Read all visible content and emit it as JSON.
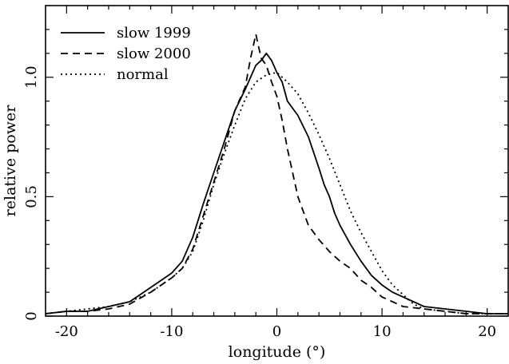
{
  "chart_data": {
    "type": "line",
    "xlabel": "longitude (°)",
    "ylabel": "relative power",
    "xlim": [
      -22,
      22
    ],
    "ylim": [
      0,
      1.3
    ],
    "xticks": [
      -20,
      -10,
      0,
      10,
      20
    ],
    "yticks": [
      0,
      0.5,
      1.0
    ],
    "ytick_labels": [
      "0",
      "0.5",
      "1.0"
    ],
    "legend_placement": "top-left",
    "grid": false,
    "series": [
      {
        "name": "slow 1999",
        "style": "solid",
        "x": [
          -22,
          -20,
          -18,
          -16,
          -14,
          -12,
          -10,
          -9,
          -8,
          -7,
          -6,
          -5,
          -4,
          -3,
          -2,
          -1.5,
          -1,
          -0.5,
          0,
          0.5,
          1,
          2,
          3,
          4,
          4.5,
          5,
          5.5,
          6,
          7,
          8,
          9,
          10,
          11,
          12,
          13,
          14,
          16,
          18,
          20,
          22
        ],
        "y": [
          0.01,
          0.02,
          0.02,
          0.04,
          0.06,
          0.12,
          0.18,
          0.23,
          0.33,
          0.47,
          0.6,
          0.73,
          0.86,
          0.95,
          1.05,
          1.07,
          1.1,
          1.07,
          1.02,
          0.98,
          0.9,
          0.84,
          0.75,
          0.62,
          0.55,
          0.5,
          0.43,
          0.38,
          0.3,
          0.23,
          0.17,
          0.13,
          0.1,
          0.08,
          0.06,
          0.04,
          0.03,
          0.02,
          0.01,
          0.01
        ]
      },
      {
        "name": "slow 2000",
        "style": "dashed",
        "x": [
          -22,
          -20,
          -18,
          -16,
          -14,
          -12,
          -10,
          -9,
          -8,
          -7,
          -6,
          -5,
          -4,
          -3,
          -2.5,
          -2,
          -1.5,
          -1,
          -0.5,
          0,
          0.5,
          1,
          2,
          3,
          4,
          5,
          6,
          7,
          8,
          9,
          10,
          11,
          12,
          14,
          16,
          18,
          20,
          22
        ],
        "y": [
          0.01,
          0.02,
          0.02,
          0.03,
          0.05,
          0.1,
          0.16,
          0.2,
          0.28,
          0.42,
          0.56,
          0.7,
          0.86,
          0.96,
          1.08,
          1.18,
          1.08,
          1.05,
          0.98,
          0.92,
          0.82,
          0.7,
          0.5,
          0.38,
          0.32,
          0.27,
          0.23,
          0.2,
          0.15,
          0.12,
          0.08,
          0.06,
          0.04,
          0.03,
          0.02,
          0.01,
          0.01,
          0.01
        ]
      },
      {
        "name": "normal",
        "style": "dotted",
        "x": [
          -22,
          -20,
          -18,
          -16,
          -14,
          -12,
          -10,
          -9,
          -8,
          -7,
          -6,
          -5,
          -4,
          -3,
          -2,
          -1,
          0,
          1,
          2,
          3,
          4,
          5,
          6,
          7,
          8,
          9,
          10,
          11,
          12,
          13,
          14,
          16,
          18,
          20,
          22
        ],
        "y": [
          0.01,
          0.02,
          0.03,
          0.04,
          0.06,
          0.1,
          0.16,
          0.2,
          0.27,
          0.4,
          0.55,
          0.68,
          0.8,
          0.91,
          0.98,
          1.01,
          1.02,
          0.98,
          0.93,
          0.85,
          0.76,
          0.66,
          0.55,
          0.44,
          0.35,
          0.27,
          0.19,
          0.13,
          0.09,
          0.05,
          0.03,
          0.02,
          0.01,
          0.01,
          0.01
        ]
      }
    ]
  }
}
